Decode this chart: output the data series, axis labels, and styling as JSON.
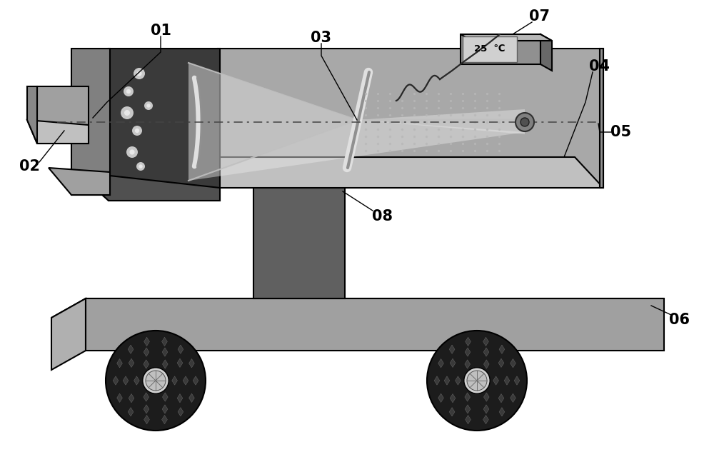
{
  "bg_color": "#ffffff",
  "figsize": [
    10.0,
    6.33
  ],
  "dpi": 100,
  "colors": {
    "plat_top": "#c8c8c8",
    "plat_left": "#b0b0b0",
    "plat_right": "#a0a0a0",
    "ped_body": "#606060",
    "ped_top": "#787878",
    "box_face": "#a8a8a8",
    "box_top_face": "#c0c0c0",
    "box_right_face": "#909090",
    "dark_body": "#3a3a3a",
    "dark_top": "#505050",
    "dark_conn": "#606060",
    "front_bar": "#808080",
    "front_bar_top": "#a0a0a0",
    "small_box_f": "#a0a0a0",
    "small_box_t": "#c0c0c0",
    "small_box_l": "#888888",
    "wheel_outer": "#1c1c1c",
    "wheel_hub": "#d0d0d0",
    "beam_fill": "#d4d4d4",
    "beam_fill2": "#e0e0e0",
    "mirror_hi": "#e0e0e0",
    "mirror_lo": "#909090",
    "axis_col": "#444444",
    "grating": "#b8b8b8",
    "detector": "#808080",
    "spot": "#c8c8c8",
    "temp_body": "#909090",
    "temp_screen": "#d0d0d0",
    "temp_side": "#686868",
    "temp_top": "#b8b8b8",
    "wire_col": "#282828",
    "black": "#000000",
    "label": "#000000"
  }
}
